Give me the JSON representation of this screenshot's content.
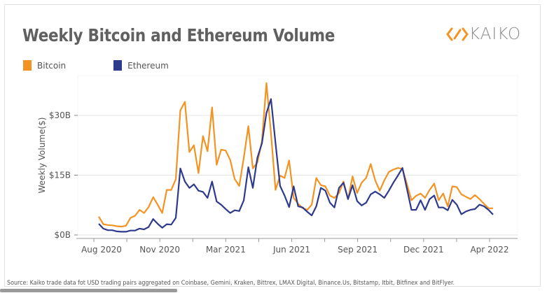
{
  "chart_data": {
    "type": "line",
    "title": "Weekly Bitcoin and Ethereum Volume",
    "ylabel": "Weekly Volume($)",
    "xlabel": "",
    "ylim": [
      0,
      40
    ],
    "y_ticks": [
      0,
      15,
      30
    ],
    "y_tick_labels": [
      "$0B",
      "$15B",
      "$30B"
    ],
    "x_tick_labels": [
      "Aug 2020",
      "Nov 2020",
      "Mar 2021",
      "Jun 2021",
      "Sep 2021",
      "Dec 2021",
      "Apr 2022"
    ],
    "grid": "horizontal",
    "legend_position": "top-left",
    "unit": "USD billions",
    "x": [
      "2020-08-10",
      "2020-08-17",
      "2020-08-24",
      "2020-08-31",
      "2020-09-07",
      "2020-09-14",
      "2020-09-21",
      "2020-09-28",
      "2020-10-05",
      "2020-10-12",
      "2020-10-19",
      "2020-10-26",
      "2020-11-02",
      "2020-11-09",
      "2020-11-16",
      "2020-11-23",
      "2020-11-30",
      "2020-12-07",
      "2020-12-14",
      "2020-12-21",
      "2020-12-28",
      "2021-01-04",
      "2021-01-11",
      "2021-01-18",
      "2021-01-25",
      "2021-02-01",
      "2021-02-08",
      "2021-02-15",
      "2021-02-22",
      "2021-03-01",
      "2021-03-08",
      "2021-03-15",
      "2021-03-22",
      "2021-03-29",
      "2021-04-05",
      "2021-04-12",
      "2021-04-19",
      "2021-04-26",
      "2021-05-03",
      "2021-05-10",
      "2021-05-17",
      "2021-05-24",
      "2021-05-31",
      "2021-06-07",
      "2021-06-14",
      "2021-06-21",
      "2021-06-28",
      "2021-07-05",
      "2021-07-12",
      "2021-07-19",
      "2021-07-26",
      "2021-08-02",
      "2021-08-09",
      "2021-08-16",
      "2021-08-23",
      "2021-08-30",
      "2021-09-06",
      "2021-09-13",
      "2021-09-20",
      "2021-09-27",
      "2021-10-04",
      "2021-10-11",
      "2021-10-18",
      "2021-10-25",
      "2021-11-01",
      "2021-11-08",
      "2021-11-15",
      "2021-11-22",
      "2021-11-29",
      "2021-12-06",
      "2021-12-13",
      "2021-12-20",
      "2021-12-27",
      "2022-01-03",
      "2022-01-10",
      "2022-01-17",
      "2022-01-24",
      "2022-01-31",
      "2022-02-07",
      "2022-02-14",
      "2022-02-21",
      "2022-02-28",
      "2022-03-07",
      "2022-03-14",
      "2022-03-21",
      "2022-03-28",
      "2022-04-04",
      "2022-04-11"
    ],
    "series": [
      {
        "name": "Bitcoin",
        "color": "#f39323",
        "values": [
          4.6,
          2.7,
          2.5,
          2.4,
          2.2,
          2.1,
          2.3,
          4.3,
          4.8,
          6.3,
          5.5,
          7.0,
          9.5,
          7.6,
          5.5,
          11.3,
          11.3,
          14.0,
          31.3,
          33.4,
          20.8,
          22.5,
          15.5,
          24.8,
          21.0,
          32.0,
          17.6,
          21.4,
          21.2,
          18.8,
          14.0,
          12.3,
          19.4,
          27.3,
          16.7,
          18.2,
          23.5,
          38.1,
          25.5,
          11.3,
          14.9,
          14.3,
          18.7,
          9.3,
          7.8,
          6.7,
          6.3,
          7.6,
          14.3,
          12.5,
          12.2,
          9.9,
          9.3,
          10.5,
          13.4,
          9.0,
          14.7,
          10.5,
          13.1,
          14.3,
          17.8,
          13.7,
          11.1,
          13.7,
          15.8,
          16.4,
          16.8,
          16.6,
          12.8,
          8.7,
          9.8,
          10.4,
          9.3,
          11.3,
          12.9,
          8.7,
          10.4,
          7.2,
          12.2,
          12.0,
          10.2,
          9.6,
          9.0,
          10.0,
          9.0,
          7.8,
          6.7,
          6.7
        ]
      },
      {
        "name": "Ethereum",
        "color": "#2e3a8c",
        "values": [
          2.8,
          1.6,
          1.2,
          1.2,
          0.9,
          0.8,
          0.8,
          1.1,
          1.1,
          1.6,
          1.4,
          2.0,
          4.0,
          2.8,
          1.8,
          2.7,
          2.6,
          4.3,
          16.7,
          13.4,
          11.8,
          12.7,
          11.1,
          10.8,
          9.3,
          13.4,
          8.4,
          7.6,
          6.5,
          5.5,
          6.2,
          6.0,
          8.7,
          17.0,
          11.8,
          19.4,
          23.0,
          30.6,
          34.1,
          23.0,
          12.3,
          9.9,
          7.0,
          12.2,
          7.2,
          6.9,
          5.8,
          4.9,
          7.2,
          11.8,
          11.1,
          8.1,
          6.9,
          11.8,
          13.1,
          9.0,
          12.5,
          8.5,
          7.4,
          8.1,
          10.2,
          10.9,
          10.2,
          9.3,
          11.1,
          13.1,
          14.9,
          16.8,
          11.6,
          6.3,
          6.3,
          8.7,
          6.3,
          9.0,
          9.9,
          6.9,
          6.9,
          6.2,
          8.8,
          7.6,
          5.2,
          5.9,
          6.3,
          6.5,
          7.6,
          7.2,
          6.3,
          5.1
        ]
      }
    ]
  },
  "brand": {
    "logo_text": "KAIKO",
    "logo_color": "#f39323"
  },
  "source_note": "Source: Kaiko trade data fot USD trading pairs aggregated on Coinbase, Gemini, Kraken, Bittrex, LMAX Digital, Binance.Us, Bitstamp, Itbit, Bitfinex and BitFlyer."
}
